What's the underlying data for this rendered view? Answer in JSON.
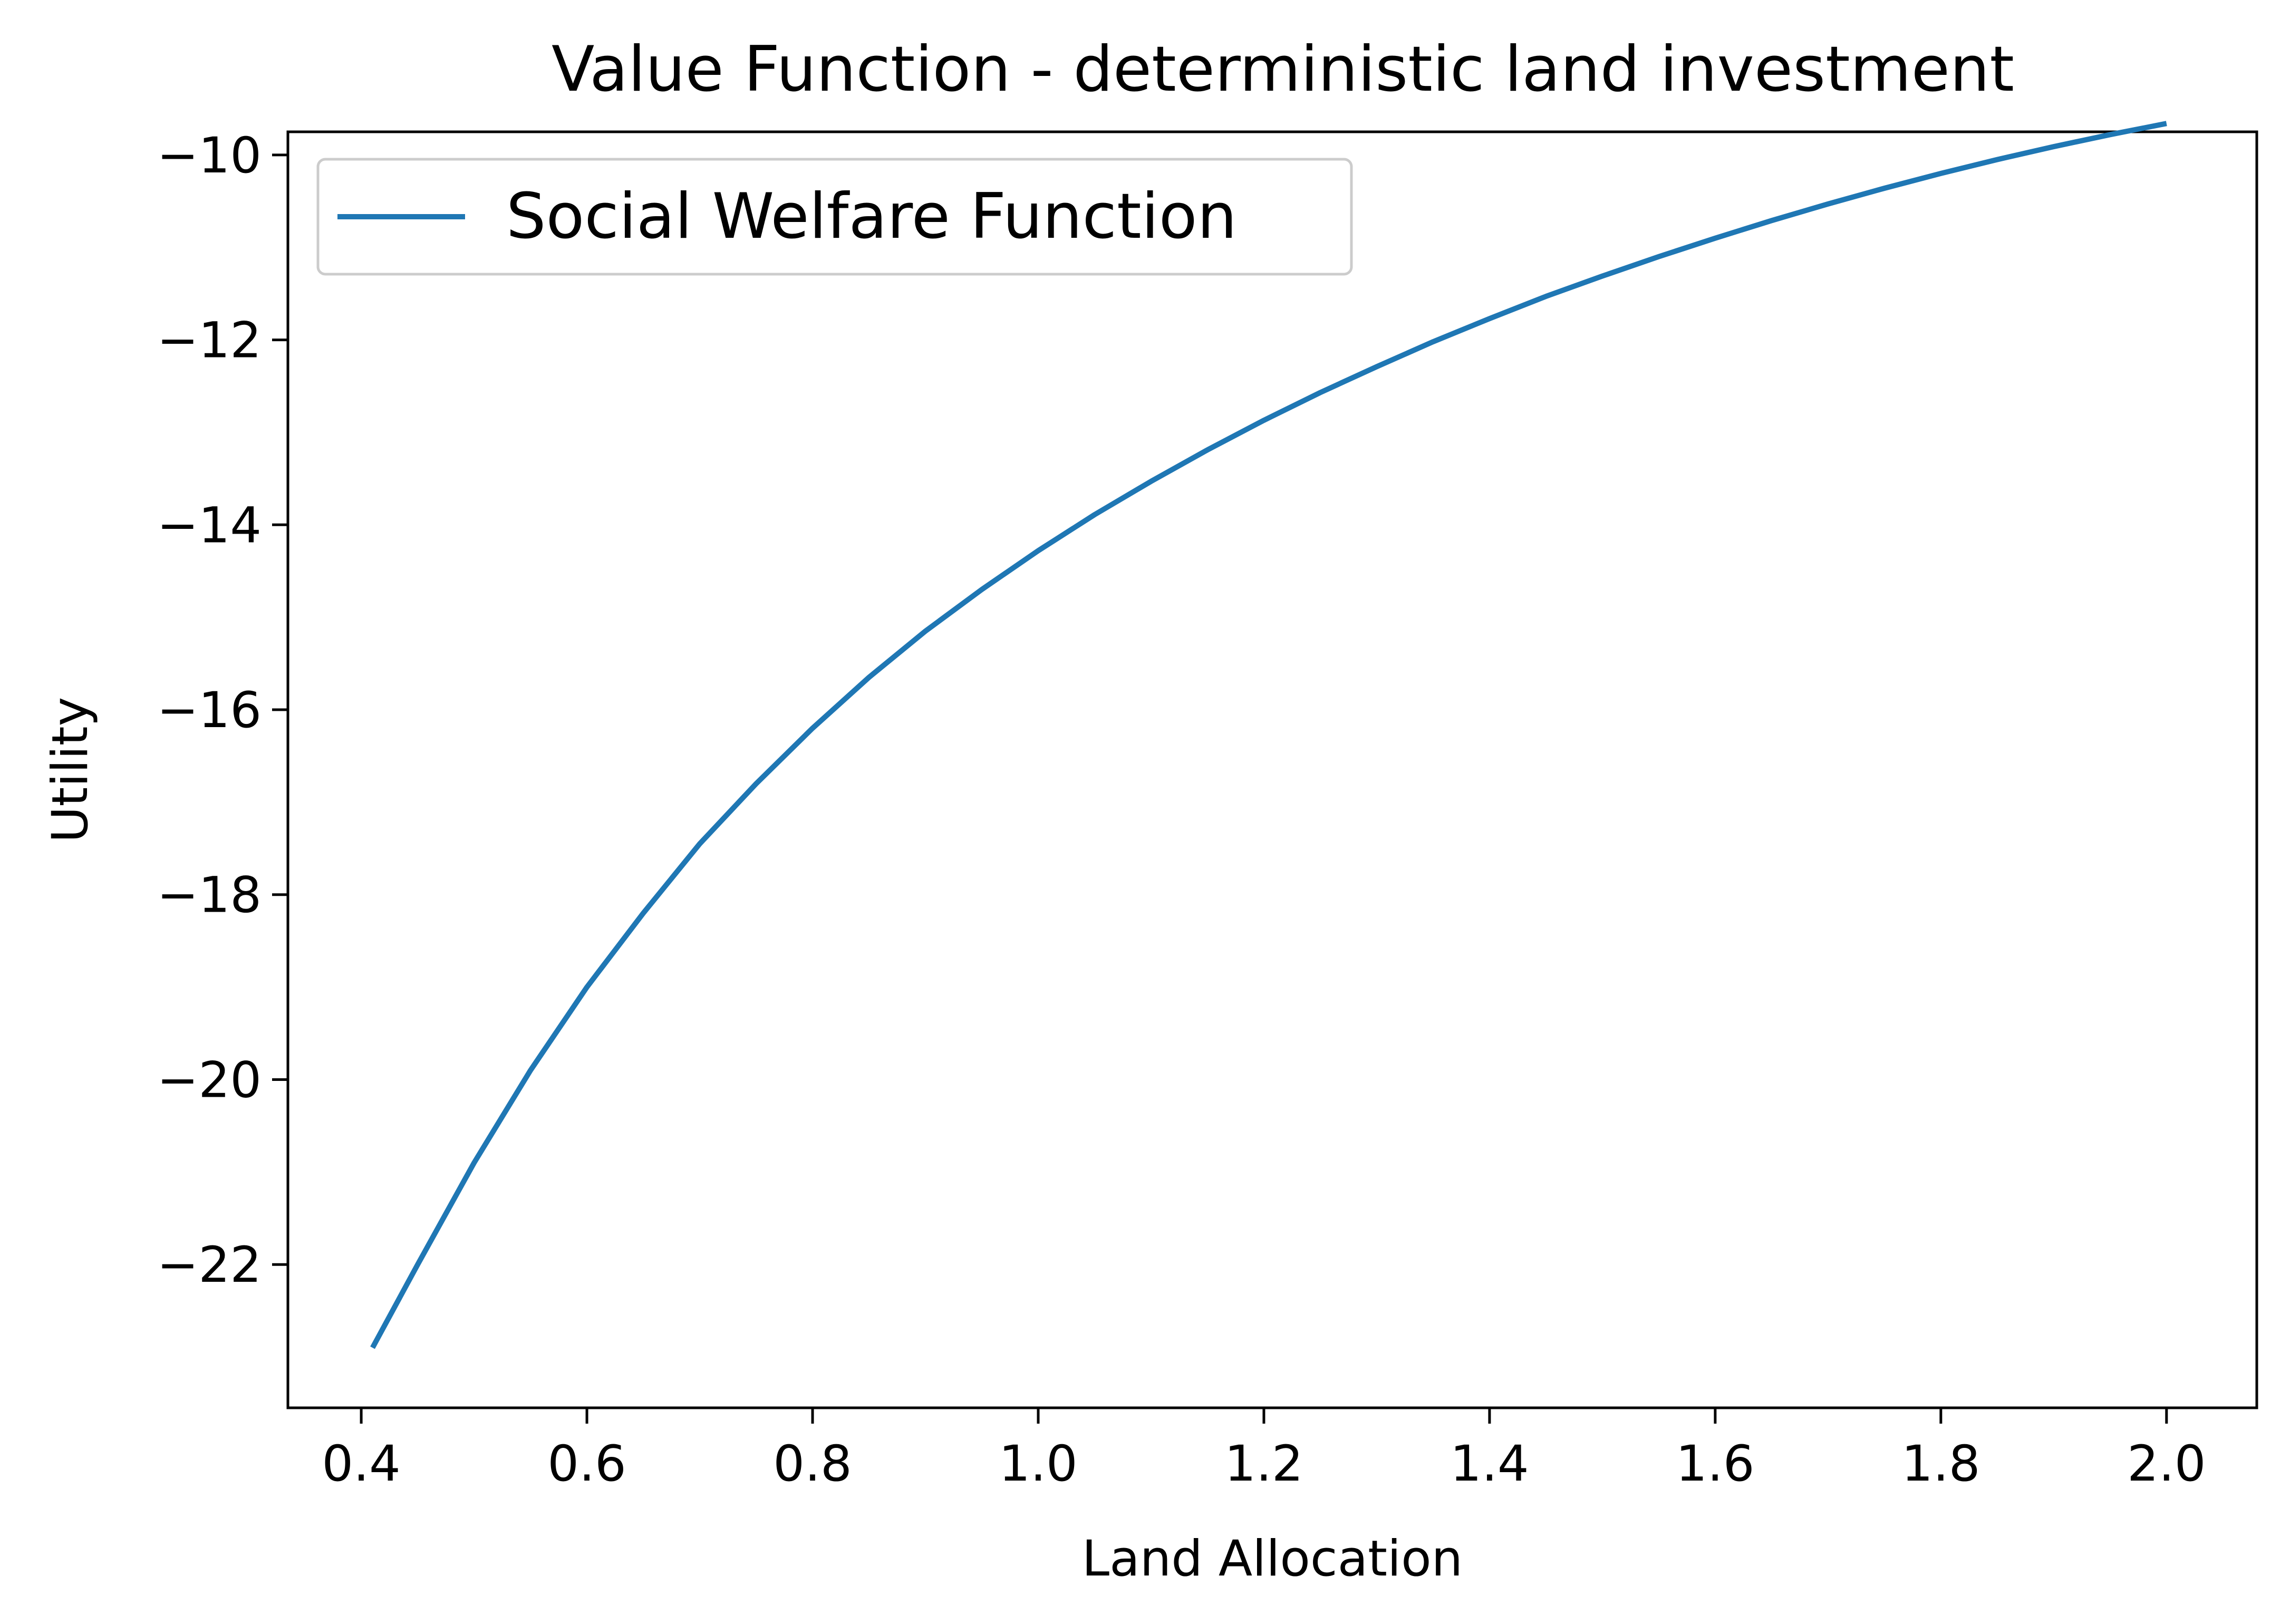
{
  "chart_data": {
    "type": "line",
    "title": "Value Function - deterministic land investment",
    "xlabel": "Land Allocation",
    "ylabel": "Utility",
    "xlim": [
      0.335,
      2.08
    ],
    "ylim": [
      -23.55,
      -9.75
    ],
    "xticks": [
      0.4,
      0.6,
      0.8,
      1.0,
      1.2,
      1.4,
      1.6,
      1.8,
      2.0
    ],
    "xtick_labels": [
      "0.4",
      "0.6",
      "0.8",
      "1.0",
      "1.2",
      "1.4",
      "1.6",
      "1.8",
      "2.0"
    ],
    "yticks": [
      -10,
      -12,
      -14,
      -16,
      -18,
      -20,
      -22
    ],
    "ytick_labels": [
      "−10",
      "−12",
      "−14",
      "−16",
      "−18",
      "−20",
      "−22"
    ],
    "grid": false,
    "legend": {
      "placement": "top-left",
      "entries": [
        "Social Welfare Function"
      ]
    },
    "series": [
      {
        "name": "Social Welfare Function",
        "color": "#1f77b4",
        "x": [
          0.41,
          0.45,
          0.5,
          0.55,
          0.6,
          0.65,
          0.7,
          0.75,
          0.8,
          0.85,
          0.9,
          0.95,
          1.0,
          1.05,
          1.1,
          1.15,
          1.2,
          1.25,
          1.3,
          1.35,
          1.4,
          1.45,
          1.5,
          1.55,
          1.6,
          1.65,
          1.7,
          1.75,
          1.8,
          1.85,
          1.9,
          1.95,
          2.0
        ],
        "y": [
          -22.9,
          -22.0,
          -20.9,
          -19.9,
          -19.0,
          -18.2,
          -17.45,
          -16.8,
          -16.2,
          -15.65,
          -15.15,
          -14.7,
          -14.28,
          -13.89,
          -13.53,
          -13.19,
          -12.87,
          -12.57,
          -12.29,
          -12.02,
          -11.77,
          -11.53,
          -11.31,
          -11.1,
          -10.9,
          -10.71,
          -10.53,
          -10.36,
          -10.2,
          -10.05,
          -9.91,
          -9.78,
          -9.66
        ]
      }
    ]
  }
}
